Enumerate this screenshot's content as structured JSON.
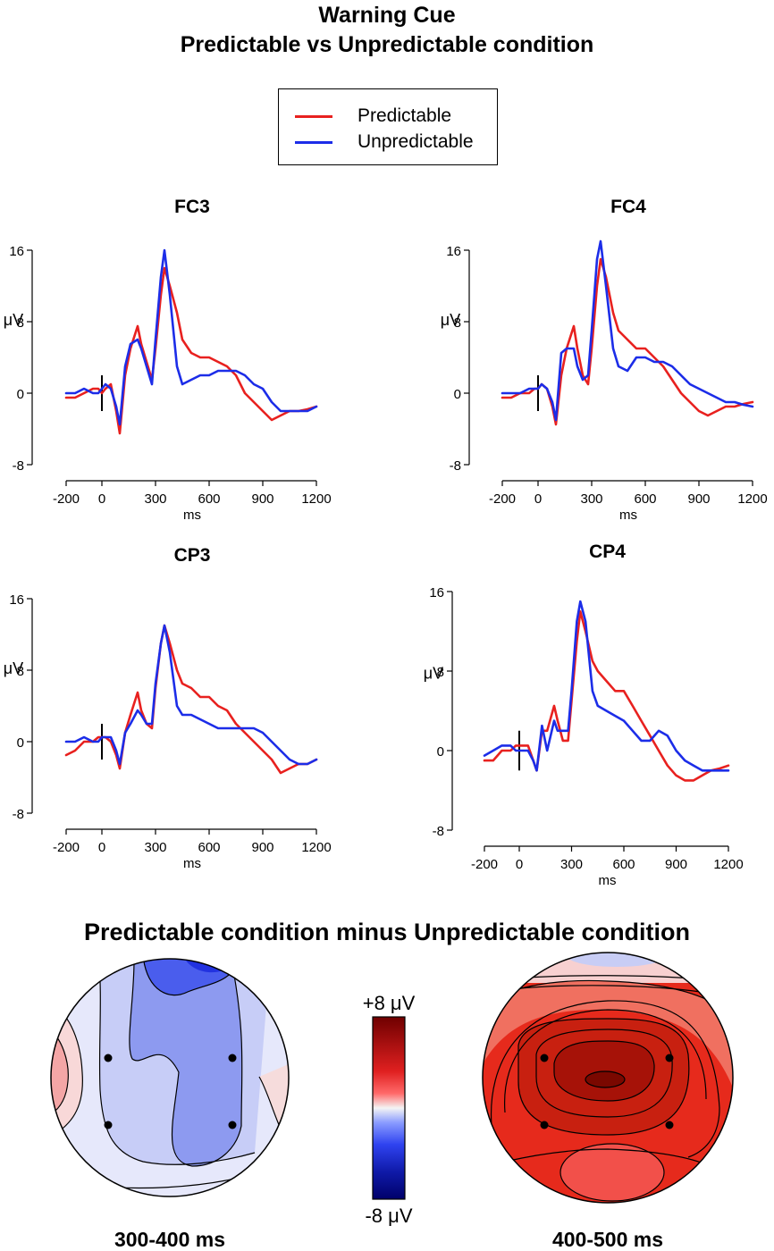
{
  "title_line1": "Warning Cue",
  "title_line2": "Predictable vs Unpredictable condition",
  "legend": [
    {
      "label": "Predictable",
      "color": "#e8211f"
    },
    {
      "label": "Unpredictable",
      "color": "#1c2de8"
    }
  ],
  "chart_data": [
    {
      "type": "line",
      "title": "FC3",
      "xlabel": "ms",
      "ylabel": "μV",
      "xlim": [
        -200,
        1200
      ],
      "ylim": [
        -8,
        16
      ],
      "x_ticks": [
        "-200",
        "0",
        "300",
        "600",
        "900",
        "1200"
      ],
      "y_ticks": [
        "-8",
        "0",
        "8",
        "16"
      ],
      "stimulus_marker_ms": 0,
      "series": [
        {
          "name": "Predictable",
          "x": [
            -200,
            -150,
            -100,
            -50,
            -20,
            0,
            20,
            50,
            80,
            100,
            130,
            160,
            200,
            220,
            250,
            280,
            300,
            330,
            350,
            380,
            420,
            450,
            500,
            550,
            600,
            650,
            700,
            750,
            800,
            850,
            900,
            950,
            1000,
            1050,
            1100,
            1150,
            1200
          ],
          "y": [
            -0.5,
            -0.5,
            0,
            0.5,
            0.5,
            0,
            0.5,
            1,
            -2,
            -4.5,
            2,
            5,
            7.5,
            5.5,
            3.5,
            1.5,
            5,
            11,
            14,
            12,
            9,
            6,
            4.5,
            4,
            4,
            3.5,
            3,
            2,
            0,
            -1,
            -2,
            -3,
            -2.5,
            -2,
            -2,
            -1.8,
            -1.5
          ]
        },
        {
          "name": "Unpredictable",
          "x": [
            -200,
            -150,
            -100,
            -50,
            -20,
            0,
            20,
            50,
            80,
            100,
            130,
            160,
            200,
            220,
            250,
            280,
            300,
            330,
            350,
            380,
            420,
            450,
            500,
            550,
            600,
            650,
            700,
            750,
            800,
            850,
            900,
            950,
            1000,
            1050,
            1100,
            1150,
            1200
          ],
          "y": [
            0,
            0,
            0.5,
            0,
            0,
            0.5,
            1,
            0.5,
            -1.5,
            -3.5,
            3,
            5.5,
            6,
            5,
            3,
            1,
            6,
            13,
            16,
            11,
            3,
            1,
            1.5,
            2,
            2,
            2.5,
            2.5,
            2.5,
            2,
            1,
            0.5,
            -1,
            -2,
            -2,
            -2,
            -2,
            -1.5
          ]
        }
      ]
    },
    {
      "type": "line",
      "title": "FC4",
      "xlabel": "ms",
      "ylabel": "μV",
      "xlim": [
        -200,
        1200
      ],
      "ylim": [
        -8,
        16
      ],
      "x_ticks": [
        "-200",
        "0",
        "300",
        "600",
        "900",
        "1200"
      ],
      "y_ticks": [
        "-8",
        "0",
        "8",
        "16"
      ],
      "stimulus_marker_ms": 0,
      "series": [
        {
          "name": "Predictable",
          "x": [
            -200,
            -150,
            -100,
            -50,
            -20,
            0,
            20,
            50,
            80,
            100,
            130,
            160,
            200,
            220,
            250,
            280,
            300,
            330,
            350,
            380,
            420,
            450,
            500,
            550,
            600,
            650,
            700,
            750,
            800,
            850,
            900,
            950,
            1000,
            1050,
            1100,
            1150,
            1200
          ],
          "y": [
            -0.5,
            -0.5,
            0,
            0,
            0.5,
            0.5,
            1,
            0.5,
            -1.5,
            -3.5,
            2,
            5,
            7.5,
            5,
            2,
            1,
            5,
            12,
            15,
            13,
            9,
            7,
            6,
            5,
            5,
            4,
            3,
            1.5,
            0,
            -1,
            -2,
            -2.5,
            -2,
            -1.5,
            -1.5,
            -1.2,
            -1
          ]
        },
        {
          "name": "Unpredictable",
          "x": [
            -200,
            -150,
            -100,
            -50,
            -20,
            0,
            20,
            50,
            80,
            100,
            130,
            160,
            200,
            220,
            250,
            280,
            300,
            330,
            350,
            380,
            420,
            450,
            500,
            550,
            600,
            650,
            700,
            750,
            800,
            850,
            900,
            950,
            1000,
            1050,
            1100,
            1150,
            1200
          ],
          "y": [
            0,
            0,
            0,
            0.5,
            0.5,
            0.5,
            1,
            0.5,
            -1,
            -3,
            4.5,
            5,
            5,
            3,
            1.5,
            2,
            7,
            15,
            17,
            12,
            5,
            3,
            2.5,
            4,
            4,
            3.5,
            3.5,
            3,
            2,
            1,
            0.5,
            0,
            -0.5,
            -1,
            -1,
            -1.3,
            -1.5
          ]
        }
      ]
    },
    {
      "type": "line",
      "title": "CP3",
      "xlabel": "ms",
      "ylabel": "μV",
      "xlim": [
        -200,
        1200
      ],
      "ylim": [
        -8,
        16
      ],
      "x_ticks": [
        "-200",
        "0",
        "300",
        "600",
        "900",
        "1200"
      ],
      "y_ticks": [
        "-8",
        "0",
        "8",
        "16"
      ],
      "stimulus_marker_ms": 0,
      "series": [
        {
          "name": "Predictable",
          "x": [
            -200,
            -150,
            -100,
            -50,
            -20,
            0,
            20,
            50,
            80,
            100,
            130,
            160,
            200,
            220,
            250,
            280,
            300,
            330,
            350,
            380,
            420,
            450,
            500,
            550,
            600,
            650,
            700,
            750,
            800,
            850,
            900,
            950,
            1000,
            1050,
            1100,
            1150,
            1200
          ],
          "y": [
            -1.5,
            -1,
            0,
            0,
            0.5,
            0.5,
            0.5,
            0,
            -1.5,
            -3,
            1,
            3,
            5.5,
            3.5,
            2,
            1.5,
            6,
            11,
            13,
            11,
            8,
            6.5,
            6,
            5,
            5,
            4,
            3.5,
            2,
            1,
            0,
            -1,
            -2,
            -3.5,
            -3,
            -2.5,
            -2.5,
            -2
          ]
        },
        {
          "name": "Unpredictable",
          "x": [
            -200,
            -150,
            -100,
            -50,
            -20,
            0,
            20,
            50,
            80,
            100,
            130,
            160,
            200,
            220,
            250,
            280,
            300,
            330,
            350,
            380,
            420,
            450,
            500,
            550,
            600,
            650,
            700,
            750,
            800,
            850,
            900,
            950,
            1000,
            1050,
            1100,
            1150,
            1200
          ],
          "y": [
            0,
            0,
            0.5,
            0,
            0,
            0.5,
            0.5,
            0.5,
            -1,
            -2.5,
            1,
            2,
            3.5,
            3,
            2,
            2,
            6.5,
            11,
            13,
            10,
            4,
            3,
            3,
            2.5,
            2,
            1.5,
            1.5,
            1.5,
            1.5,
            1.5,
            1,
            0,
            -1,
            -2,
            -2.5,
            -2.5,
            -2
          ]
        }
      ]
    },
    {
      "type": "line",
      "title": "CP4",
      "xlabel": "ms",
      "ylabel": "μV",
      "xlim": [
        -200,
        1200
      ],
      "ylim": [
        -8,
        16
      ],
      "x_ticks": [
        "-200",
        "0",
        "300",
        "600",
        "900",
        "1200"
      ],
      "y_ticks": [
        "-8",
        "0",
        "8",
        "16"
      ],
      "stimulus_marker_ms": 0,
      "series": [
        {
          "name": "Predictable",
          "x": [
            -200,
            -150,
            -100,
            -50,
            -20,
            0,
            20,
            50,
            80,
            100,
            130,
            160,
            200,
            220,
            250,
            280,
            300,
            330,
            350,
            380,
            420,
            450,
            500,
            550,
            600,
            650,
            700,
            750,
            800,
            850,
            900,
            950,
            1000,
            1050,
            1100,
            1150,
            1200
          ],
          "y": [
            -1,
            -1,
            0,
            0,
            0.5,
            0.5,
            0.5,
            0.5,
            -1,
            -2,
            2,
            2,
            4.5,
            3,
            1,
            1,
            5,
            11,
            14,
            12,
            9,
            8,
            7,
            6,
            6,
            4.5,
            3,
            1.5,
            0,
            -1.5,
            -2.5,
            -3,
            -3,
            -2.5,
            -2,
            -1.8,
            -1.5
          ]
        },
        {
          "name": "Unpredictable",
          "x": [
            -200,
            -150,
            -100,
            -50,
            -20,
            0,
            20,
            50,
            80,
            100,
            130,
            160,
            200,
            220,
            250,
            280,
            300,
            330,
            350,
            380,
            420,
            450,
            500,
            550,
            600,
            650,
            700,
            750,
            800,
            850,
            900,
            950,
            1000,
            1050,
            1100,
            1150,
            1200
          ],
          "y": [
            -0.5,
            0,
            0.5,
            0.5,
            0,
            0,
            0,
            0,
            -1,
            -2,
            2.5,
            0,
            3,
            2,
            2,
            2,
            6,
            13,
            15,
            13,
            6,
            4.5,
            4,
            3.5,
            3,
            2,
            1,
            1,
            2,
            1.5,
            0,
            -1,
            -1.5,
            -2,
            -2,
            -2,
            -2
          ]
        }
      ]
    },
    {
      "type": "heatmap",
      "subtitle": "Predictable condition minus Unpredictable condition",
      "colorbar": {
        "max_label": "+8 μV",
        "min_label": "-8 μV",
        "vmin": -8,
        "vmax": 8
      },
      "maps": [
        {
          "label": "300-400 ms",
          "range_ms": [
            300,
            400
          ],
          "sign": "negative (blue), frontal-central minimum"
        },
        {
          "label": "400-500 ms",
          "range_ms": [
            400,
            500
          ],
          "sign": "positive (red), central maximum"
        }
      ]
    }
  ]
}
